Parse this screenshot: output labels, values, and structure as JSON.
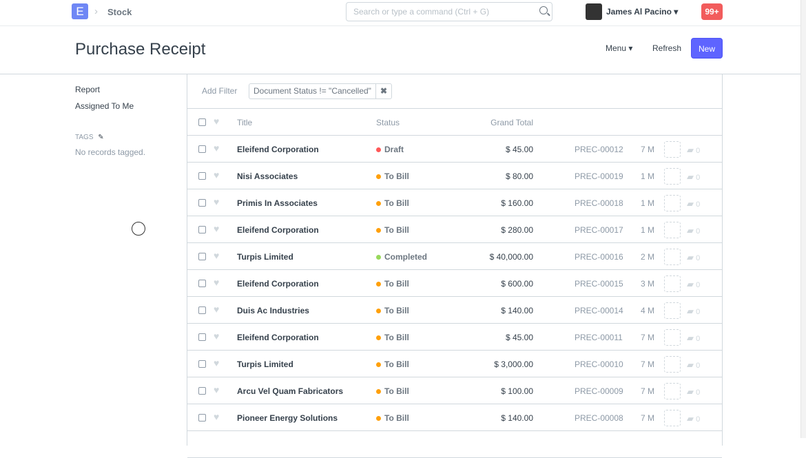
{
  "nav": {
    "logo": "E",
    "breadcrumb": "Stock",
    "search_placeholder": "Search or type a command (Ctrl + G)",
    "user": "James Al Pacino",
    "notifications": "99+"
  },
  "page": {
    "title": "Purchase Receipt",
    "menu": "Menu",
    "refresh": "Refresh",
    "new": "New"
  },
  "sidebar": {
    "report": "Report",
    "assigned": "Assigned To Me",
    "tags": "TAGS",
    "no_tags": "No records tagged."
  },
  "filters": {
    "add": "Add Filter",
    "chip": "Document Status != \"Cancelled\"",
    "remove": "✖"
  },
  "columns": {
    "title": "Title",
    "status": "Status",
    "total": "Grand Total"
  },
  "status_colors": {
    "Draft": "#ff5858",
    "To Bill": "#ffa00a",
    "Completed": "#98d85b"
  },
  "rows": [
    {
      "title": "Eleifend Corporation",
      "status": "Draft",
      "total": "$ 45.00",
      "id": "PREC-00012",
      "age": "7 M",
      "comments": "0"
    },
    {
      "title": "Nisi Associates",
      "status": "To Bill",
      "total": "$ 80.00",
      "id": "PREC-00019",
      "age": "1 M",
      "comments": "0"
    },
    {
      "title": "Primis In Associates",
      "status": "To Bill",
      "total": "$ 160.00",
      "id": "PREC-00018",
      "age": "1 M",
      "comments": "0"
    },
    {
      "title": "Eleifend Corporation",
      "status": "To Bill",
      "total": "$ 280.00",
      "id": "PREC-00017",
      "age": "1 M",
      "comments": "0"
    },
    {
      "title": "Turpis Limited",
      "status": "Completed",
      "total": "$ 40,000.00",
      "id": "PREC-00016",
      "age": "2 M",
      "comments": "0"
    },
    {
      "title": "Eleifend Corporation",
      "status": "To Bill",
      "total": "$ 600.00",
      "id": "PREC-00015",
      "age": "3 M",
      "comments": "0"
    },
    {
      "title": "Duis Ac Industries",
      "status": "To Bill",
      "total": "$ 140.00",
      "id": "PREC-00014",
      "age": "4 M",
      "comments": "0"
    },
    {
      "title": "Eleifend Corporation",
      "status": "To Bill",
      "total": "$ 45.00",
      "id": "PREC-00011",
      "age": "7 M",
      "comments": "0"
    },
    {
      "title": "Turpis Limited",
      "status": "To Bill",
      "total": "$ 3,000.00",
      "id": "PREC-00010",
      "age": "7 M",
      "comments": "0"
    },
    {
      "title": "Arcu Vel Quam Fabricators",
      "status": "To Bill",
      "total": "$ 100.00",
      "id": "PREC-00009",
      "age": "7 M",
      "comments": "0"
    },
    {
      "title": "Pioneer Energy Solutions",
      "status": "To Bill",
      "total": "$ 140.00",
      "id": "PREC-00008",
      "age": "7 M",
      "comments": "0"
    }
  ]
}
